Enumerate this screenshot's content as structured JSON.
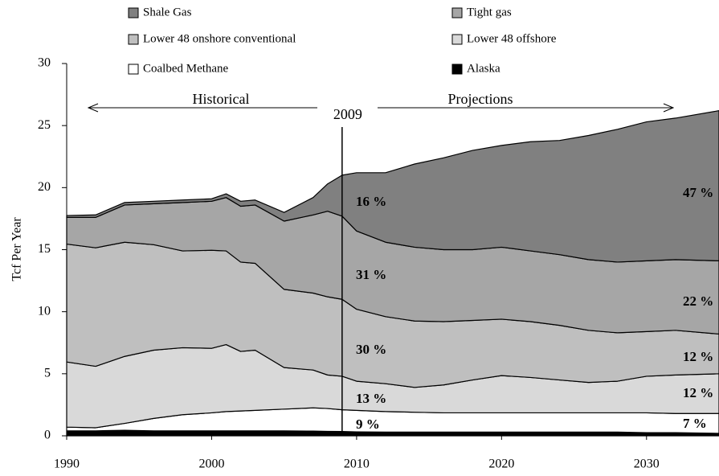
{
  "chart_data": {
    "type": "stacked-area",
    "y_label": "Tcf Per Year",
    "x": [
      1990,
      1992,
      1994,
      1996,
      1998,
      2000,
      2001,
      2002,
      2003,
      2005,
      2007,
      2008,
      2009,
      2010,
      2012,
      2014,
      2016,
      2018,
      2020,
      2022,
      2024,
      2026,
      2028,
      2030,
      2032,
      2035
    ],
    "series": [
      {
        "name": "Alaska",
        "color": "#000000",
        "values": [
          0.4,
          0.4,
          0.45,
          0.4,
          0.4,
          0.4,
          0.4,
          0.4,
          0.4,
          0.4,
          0.38,
          0.36,
          0.35,
          0.32,
          0.3,
          0.3,
          0.3,
          0.3,
          0.3,
          0.3,
          0.3,
          0.3,
          0.3,
          0.25,
          0.25,
          0.2
        ]
      },
      {
        "name": "Coalbed Methane",
        "color": "#ffffff",
        "values": [
          0.3,
          0.25,
          0.55,
          1.0,
          1.3,
          1.45,
          1.55,
          1.6,
          1.65,
          1.75,
          1.87,
          1.84,
          1.75,
          1.73,
          1.65,
          1.6,
          1.55,
          1.55,
          1.55,
          1.55,
          1.55,
          1.55,
          1.55,
          1.6,
          1.55,
          1.6
        ]
      },
      {
        "name": "Lower 48 offshore",
        "color": "#d9d9d9",
        "values": [
          5.25,
          4.95,
          5.4,
          5.5,
          5.4,
          5.2,
          5.4,
          4.8,
          4.85,
          3.35,
          3.05,
          2.7,
          2.7,
          2.35,
          2.25,
          2.0,
          2.25,
          2.65,
          3.0,
          2.85,
          2.65,
          2.45,
          2.55,
          2.95,
          3.1,
          3.2
        ]
      },
      {
        "name": "Lower 48 onshore conventional",
        "color": "#bfbfbf",
        "values": [
          9.5,
          9.55,
          9.2,
          8.5,
          7.8,
          7.9,
          7.55,
          7.2,
          7.0,
          6.3,
          6.2,
          6.3,
          6.2,
          5.8,
          5.4,
          5.35,
          5.1,
          4.8,
          4.55,
          4.5,
          4.4,
          4.2,
          3.9,
          3.6,
          3.6,
          3.2
        ]
      },
      {
        "name": "Tight gas",
        "color": "#a6a6a6",
        "values": [
          2.15,
          2.45,
          3.0,
          3.3,
          3.9,
          3.95,
          4.3,
          4.5,
          4.7,
          5.5,
          6.3,
          6.9,
          6.7,
          6.3,
          6.0,
          5.95,
          5.8,
          5.7,
          5.8,
          5.7,
          5.7,
          5.7,
          5.7,
          5.7,
          5.7,
          5.9
        ]
      },
      {
        "name": "Shale Gas",
        "color": "#808080",
        "values": [
          0.15,
          0.2,
          0.2,
          0.2,
          0.2,
          0.2,
          0.3,
          0.4,
          0.4,
          0.7,
          1.4,
          2.2,
          3.3,
          4.7,
          5.6,
          6.7,
          7.4,
          8.0,
          8.2,
          8.8,
          9.2,
          10.0,
          10.7,
          11.2,
          11.4,
          12.1
        ]
      }
    ],
    "xlim": [
      1990,
      2035
    ],
    "xticks": [
      1990,
      2000,
      2010,
      2020,
      2030
    ],
    "ylim": [
      0,
      30
    ],
    "yticks": [
      0,
      5,
      10,
      15,
      20,
      25,
      30
    ],
    "divider": 2009,
    "historical_label": "Historical",
    "projections_label": "Projections",
    "annotations_2009": [
      "16 %",
      "31 %",
      "30 %",
      "13 %",
      "9 %"
    ],
    "annotations_2035": [
      "47 %",
      "22 %",
      "12 %",
      "12 %",
      "7 %"
    ]
  }
}
